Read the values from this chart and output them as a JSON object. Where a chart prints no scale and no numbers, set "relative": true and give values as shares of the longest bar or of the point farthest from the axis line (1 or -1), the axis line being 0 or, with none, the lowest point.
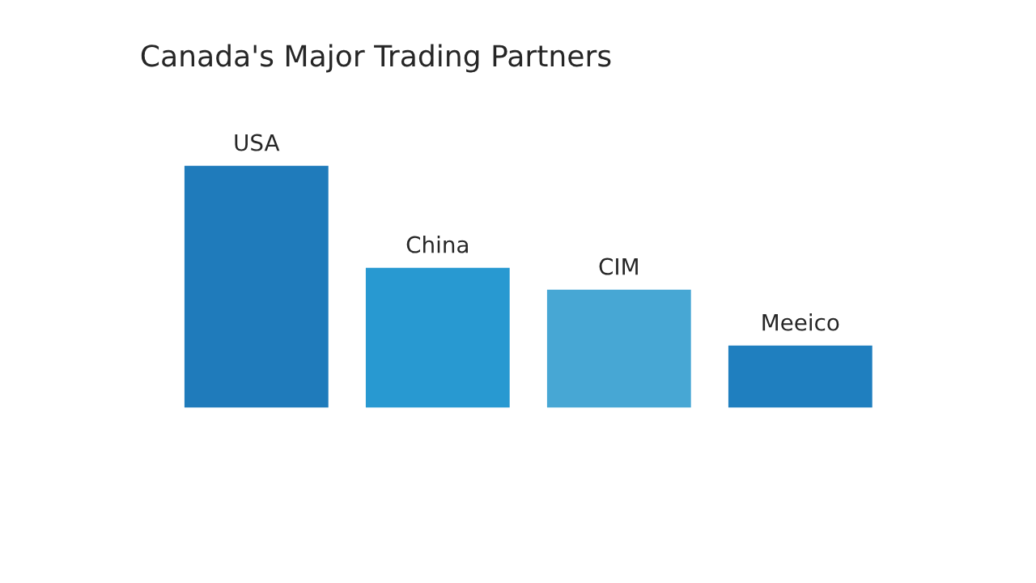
{
  "chart_data": {
    "type": "bar",
    "title": "Canada's Major Trading Partners",
    "relative": true,
    "categories": [
      "USA",
      "China",
      "CIM",
      "Meeico"
    ],
    "values": [
      1,
      0.58,
      0.49,
      0.26
    ],
    "colors": [
      "#1f7bbb",
      "#2899d1",
      "#47a7d4",
      "#1f7fbf"
    ]
  }
}
